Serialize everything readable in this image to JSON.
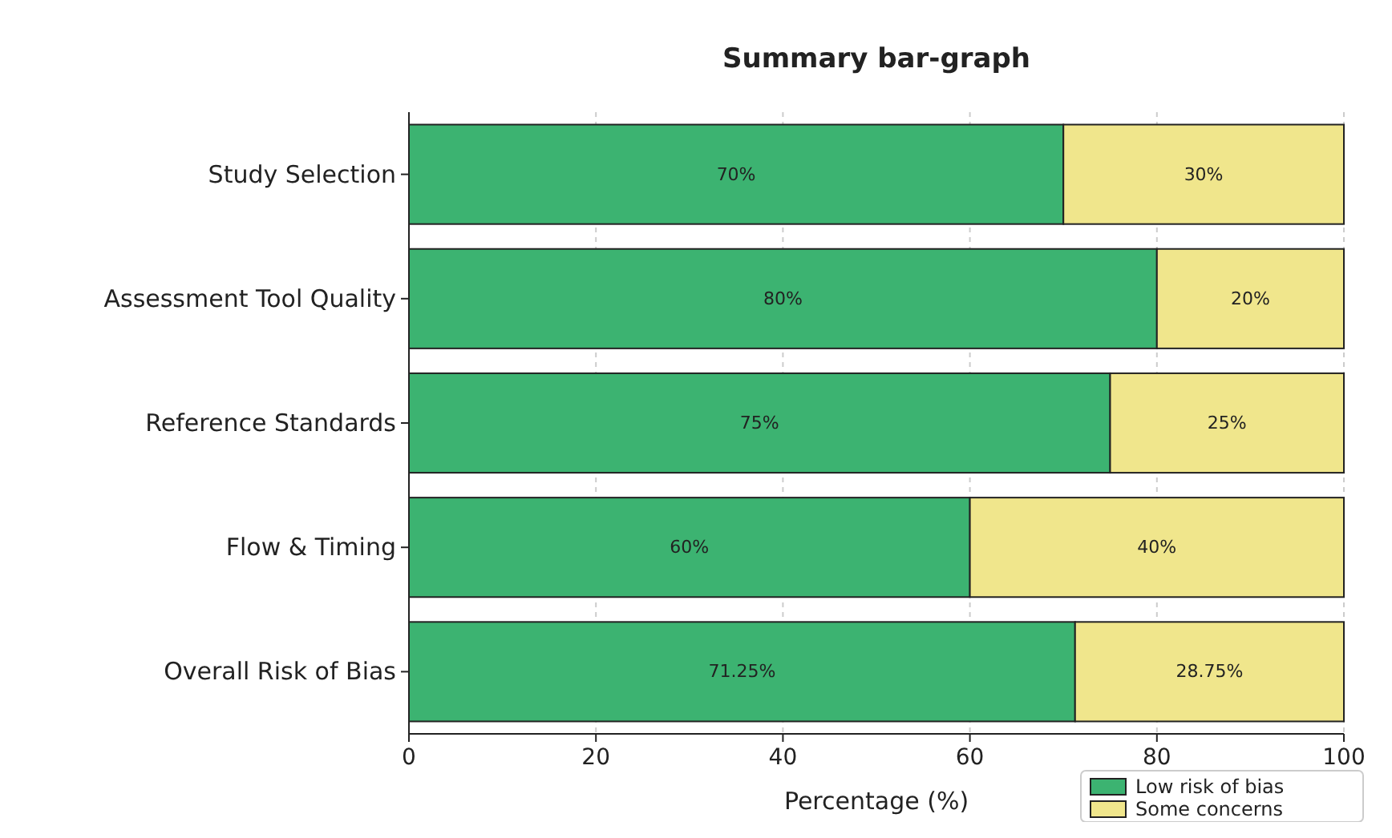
{
  "chart_data": {
    "type": "bar",
    "orientation": "horizontal",
    "stacked": true,
    "title": "Summary bar-graph",
    "xlabel": "Percentage (%)",
    "categories": [
      "Study Selection",
      "Assessment Tool Quality",
      "Reference Standards",
      "Flow & Timing",
      "Overall Risk of Bias"
    ],
    "series": [
      {
        "name": "Low risk of bias",
        "color": "#3cb371",
        "values": [
          70,
          80,
          75,
          60,
          71.25
        ],
        "value_labels": [
          "70%",
          "80%",
          "75%",
          "60%",
          "71.25%"
        ]
      },
      {
        "name": "Some concerns",
        "color": "#f0e68c",
        "values": [
          30,
          20,
          25,
          40,
          28.75
        ],
        "value_labels": [
          "30%",
          "20%",
          "25%",
          "40%",
          "28.75%"
        ]
      }
    ],
    "xlim": [
      0,
      100
    ],
    "xticks": [
      0,
      20,
      40,
      60,
      80,
      100
    ],
    "grid": true,
    "legend": "bottom right"
  }
}
